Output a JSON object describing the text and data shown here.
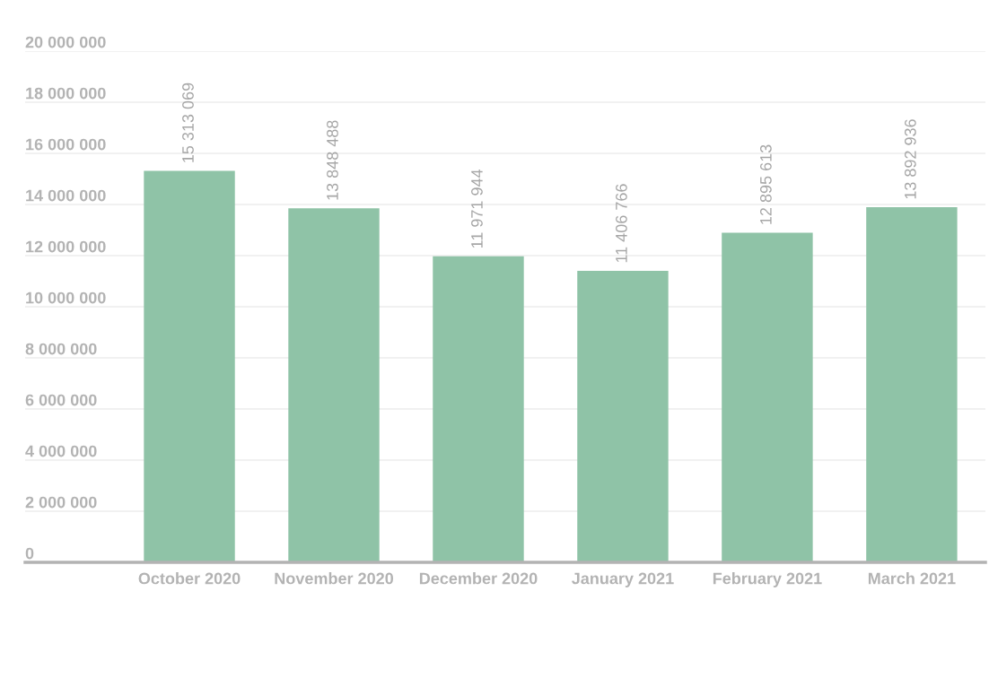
{
  "chart_data": {
    "type": "bar",
    "categories": [
      "October 2020",
      "November 2020",
      "December 2020",
      "January 2021",
      "February 2021",
      "March 2021"
    ],
    "values": [
      15313069,
      13848488,
      11971944,
      11406766,
      12895613,
      13892936
    ],
    "value_labels": [
      "15 313 069",
      "13 848 488",
      "11 971 944",
      "11 406 766",
      "12 895 613",
      "13 892 936"
    ],
    "color": "#8fc3a7",
    "ylim": [
      0,
      20000000
    ],
    "yticks": [
      {
        "value": 0,
        "label": "0"
      },
      {
        "value": 2000000,
        "label": "2 000 000"
      },
      {
        "value": 4000000,
        "label": "4 000 000"
      },
      {
        "value": 6000000,
        "label": "6 000 000"
      },
      {
        "value": 8000000,
        "label": "8 000 000"
      },
      {
        "value": 10000000,
        "label": "10 000 000"
      },
      {
        "value": 12000000,
        "label": "12 000 000"
      },
      {
        "value": 14000000,
        "label": "14 000 000"
      },
      {
        "value": 16000000,
        "label": "16 000 000"
      },
      {
        "value": 18000000,
        "label": "18 000 000"
      },
      {
        "value": 20000000,
        "label": "20 000 000"
      }
    ],
    "grid": "y"
  }
}
